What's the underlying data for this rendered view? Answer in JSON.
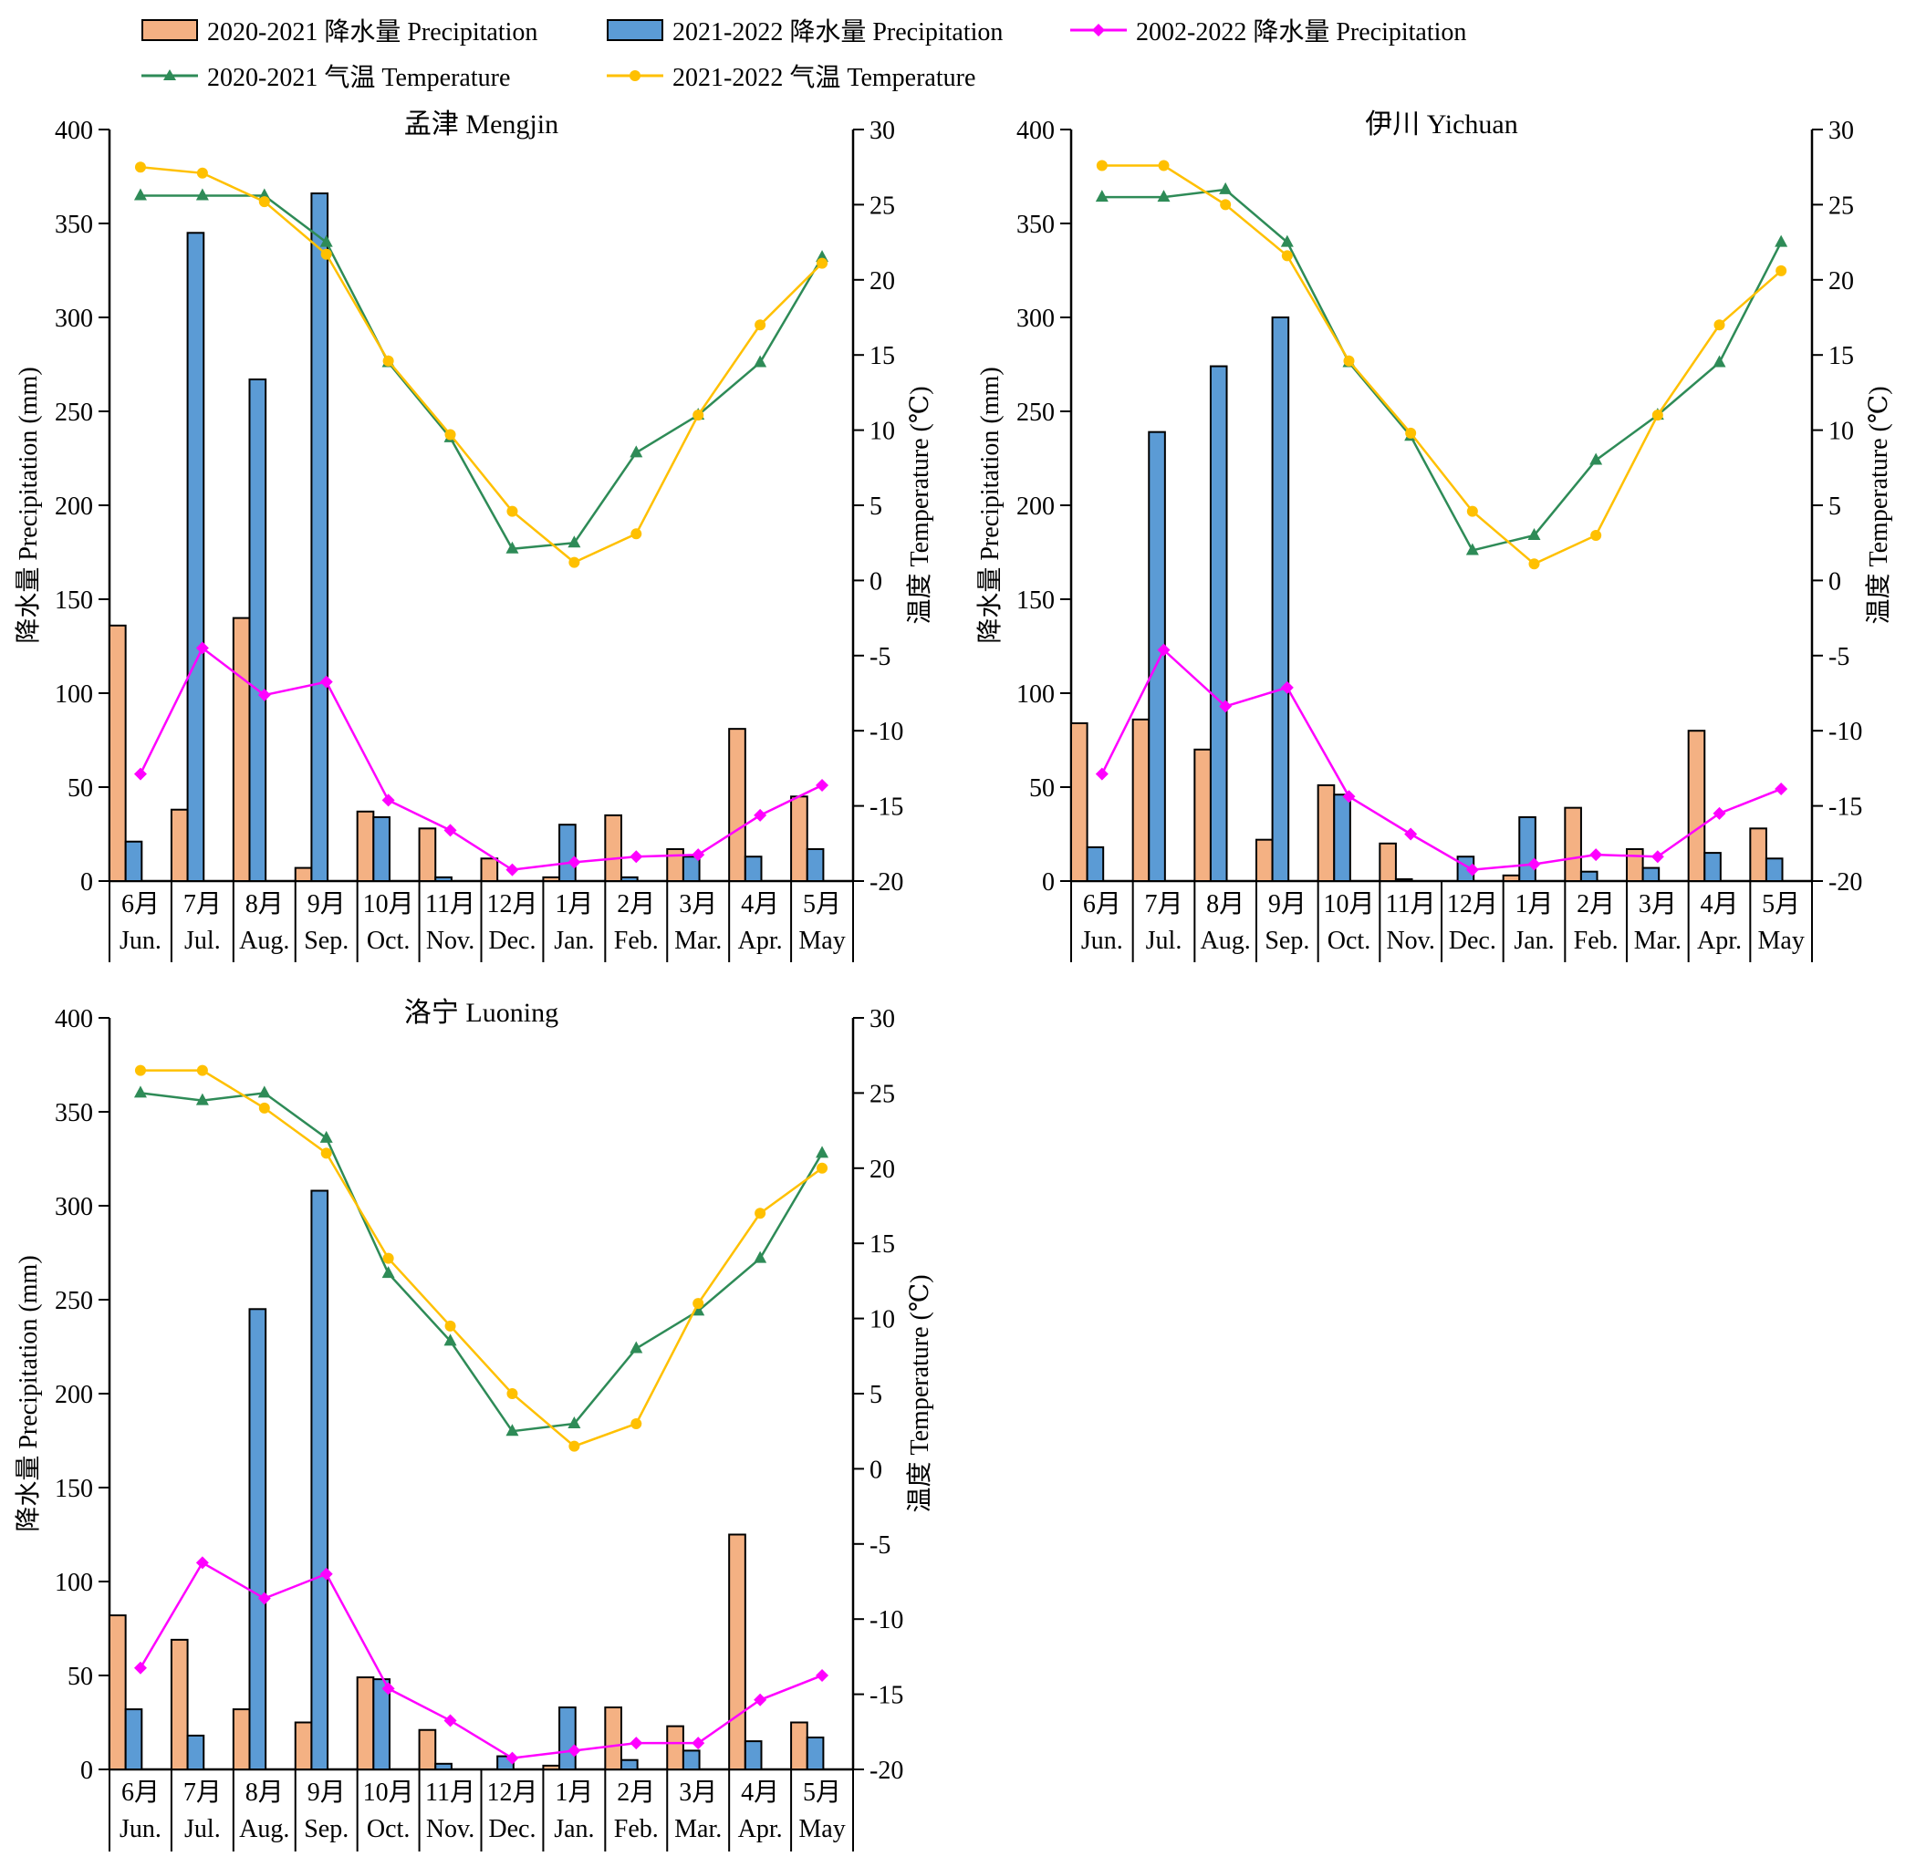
{
  "legend": {
    "items": [
      {
        "label": "2020-2021 降水量 Precipitation",
        "kind": "bar",
        "color": "#F4B183"
      },
      {
        "label": "2021-2022 降水量 Precipitation",
        "kind": "bar",
        "color": "#5B9BD5"
      },
      {
        "label": "2002-2022 降水量 Precipitation",
        "kind": "line",
        "marker": "diamond",
        "color": "#FF00FF"
      },
      {
        "label": "2020-2021 气温 Temperature",
        "kind": "line",
        "marker": "triangle",
        "color": "#2E8B57"
      },
      {
        "label": "2021-2022 气温 Temperature",
        "kind": "line",
        "marker": "circle",
        "color": "#FFC000"
      }
    ]
  },
  "chart_data": [
    {
      "type": "bar",
      "title": "孟津 Mengjin",
      "ylabel": "降水量 Precipitation (mm)",
      "y2label": "温度 Temperature (℃)",
      "ylim": [
        0,
        400
      ],
      "y2lim": [
        -20,
        30
      ],
      "yticks": [
        "0",
        "50",
        "100",
        "150",
        "200",
        "250",
        "300",
        "350",
        "400"
      ],
      "y2ticks": [
        "-20",
        "-15",
        "-10",
        "-5",
        "0",
        "5",
        "10",
        "15",
        "20",
        "25",
        "30"
      ],
      "categories_cn": [
        "6月",
        "7月",
        "8月",
        "9月",
        "10月",
        "11月",
        "12月",
        "1月",
        "2月",
        "3月",
        "4月",
        "5月"
      ],
      "categories_en": [
        "Jun.",
        "Jul.",
        "Aug.",
        "Sep.",
        "Oct.",
        "Nov.",
        "Dec.",
        "Jan.",
        "Feb.",
        "Mar.",
        "Apr.",
        "May"
      ],
      "series": [
        {
          "name": "2020-2021 降水量 Precipitation",
          "type": "bar",
          "axis": "left",
          "values": [
            136,
            38,
            140,
            7,
            37,
            28,
            12,
            2,
            35,
            17,
            81,
            45
          ]
        },
        {
          "name": "2021-2022 降水量 Precipitation",
          "type": "bar",
          "axis": "left",
          "values": [
            21,
            345,
            267,
            366,
            34,
            2,
            0,
            30,
            2,
            13,
            13,
            17
          ]
        },
        {
          "name": "2002-2022 降水量 Precipitation",
          "type": "line",
          "axis": "left",
          "values": [
            57,
            124,
            99,
            106,
            43,
            27,
            6,
            10,
            13,
            14,
            35,
            51
          ]
        },
        {
          "name": "2020-2021 气温 Temperature",
          "type": "line",
          "axis": "right",
          "values": [
            25.6,
            25.6,
            25.6,
            22.5,
            14.5,
            9.5,
            2.1,
            2.5,
            8.5,
            11.0,
            14.5,
            21.5
          ]
        },
        {
          "name": "2021-2022 气温 Temperature",
          "type": "line",
          "axis": "right",
          "values": [
            27.5,
            27.1,
            25.2,
            21.7,
            14.6,
            9.7,
            4.6,
            1.2,
            3.1,
            11.0,
            17.0,
            21.1
          ]
        }
      ]
    },
    {
      "type": "bar",
      "title": "伊川 Yichuan",
      "ylabel": "降水量 Precipitation (mm)",
      "y2label": "温度 Temperature (℃)",
      "ylim": [
        0,
        400
      ],
      "y2lim": [
        -20,
        30
      ],
      "yticks": [
        "0",
        "50",
        "100",
        "150",
        "200",
        "250",
        "300",
        "350",
        "400"
      ],
      "y2ticks": [
        "-20",
        "-15",
        "-10",
        "-5",
        "0",
        "5",
        "10",
        "15",
        "20",
        "25",
        "30"
      ],
      "categories_cn": [
        "6月",
        "7月",
        "8月",
        "9月",
        "10月",
        "11月",
        "12月",
        "1月",
        "2月",
        "3月",
        "4月",
        "5月"
      ],
      "categories_en": [
        "Jun.",
        "Jul.",
        "Aug.",
        "Sep.",
        "Oct.",
        "Nov.",
        "Dec.",
        "Jan.",
        "Feb.",
        "Mar.",
        "Apr.",
        "May"
      ],
      "series": [
        {
          "name": "2020-2021 降水量 Precipitation",
          "type": "bar",
          "axis": "left",
          "values": [
            84,
            86,
            70,
            22,
            51,
            20,
            0,
            3,
            39,
            17,
            80,
            28
          ]
        },
        {
          "name": "2021-2022 降水量 Precipitation",
          "type": "bar",
          "axis": "left",
          "values": [
            18,
            239,
            274,
            300,
            46,
            1,
            13,
            34,
            5,
            7,
            15,
            12
          ]
        },
        {
          "name": "2002-2022 降水量 Precipitation",
          "type": "line",
          "axis": "left",
          "values": [
            57,
            123,
            93,
            103,
            45,
            25,
            6,
            9,
            14,
            13,
            36,
            49
          ]
        },
        {
          "name": "2020-2021 气温 Temperature",
          "type": "line",
          "axis": "right",
          "values": [
            25.5,
            25.5,
            26.0,
            22.5,
            14.5,
            9.6,
            2.0,
            3.0,
            8.0,
            11.0,
            14.5,
            22.5
          ]
        },
        {
          "name": "2021-2022 气温 Temperature",
          "type": "line",
          "axis": "right",
          "values": [
            27.6,
            27.6,
            25.0,
            21.6,
            14.6,
            9.8,
            4.6,
            1.1,
            3.0,
            11.0,
            17.0,
            20.6
          ]
        }
      ]
    },
    {
      "type": "bar",
      "title": "洛宁 Luoning",
      "ylabel": "降水量 Precipitation (mm)",
      "y2label": "温度 Temperature (℃)",
      "ylim": [
        0,
        400
      ],
      "y2lim": [
        -20,
        30
      ],
      "yticks": [
        "0",
        "50",
        "100",
        "150",
        "200",
        "250",
        "300",
        "350",
        "400"
      ],
      "y2ticks": [
        "-20",
        "-15",
        "-10",
        "-5",
        "0",
        "5",
        "10",
        "15",
        "20",
        "25",
        "30"
      ],
      "categories_cn": [
        "6月",
        "7月",
        "8月",
        "9月",
        "10月",
        "11月",
        "12月",
        "1月",
        "2月",
        "3月",
        "4月",
        "5月"
      ],
      "categories_en": [
        "Jun.",
        "Jul.",
        "Aug.",
        "Sep.",
        "Oct.",
        "Nov.",
        "Dec.",
        "Jan.",
        "Feb.",
        "Mar.",
        "Apr.",
        "May"
      ],
      "series": [
        {
          "name": "2020-2021 降水量 Precipitation",
          "type": "bar",
          "axis": "left",
          "values": [
            82,
            69,
            32,
            25,
            49,
            21,
            0,
            2,
            33,
            23,
            125,
            25
          ]
        },
        {
          "name": "2021-2022 降水量 Precipitation",
          "type": "bar",
          "axis": "left",
          "values": [
            32,
            18,
            245,
            308,
            48,
            3,
            7,
            33,
            5,
            10,
            15,
            17
          ]
        },
        {
          "name": "2002-2022 降水量 Precipitation",
          "type": "line",
          "axis": "left",
          "values": [
            54,
            110,
            91,
            104,
            43,
            26,
            6,
            10,
            14,
            14,
            37,
            50
          ]
        },
        {
          "name": "2020-2021 气温 Temperature",
          "type": "line",
          "axis": "right",
          "values": [
            25.0,
            24.5,
            25.0,
            22.0,
            13.0,
            8.5,
            2.5,
            3.0,
            8.0,
            10.5,
            14.0,
            21.0
          ]
        },
        {
          "name": "2021-2022 气温 Temperature",
          "type": "line",
          "axis": "right",
          "values": [
            26.5,
            26.5,
            24.0,
            21.0,
            14.0,
            9.5,
            5.0,
            1.5,
            3.0,
            11.0,
            17.0,
            20.0
          ]
        }
      ]
    }
  ]
}
